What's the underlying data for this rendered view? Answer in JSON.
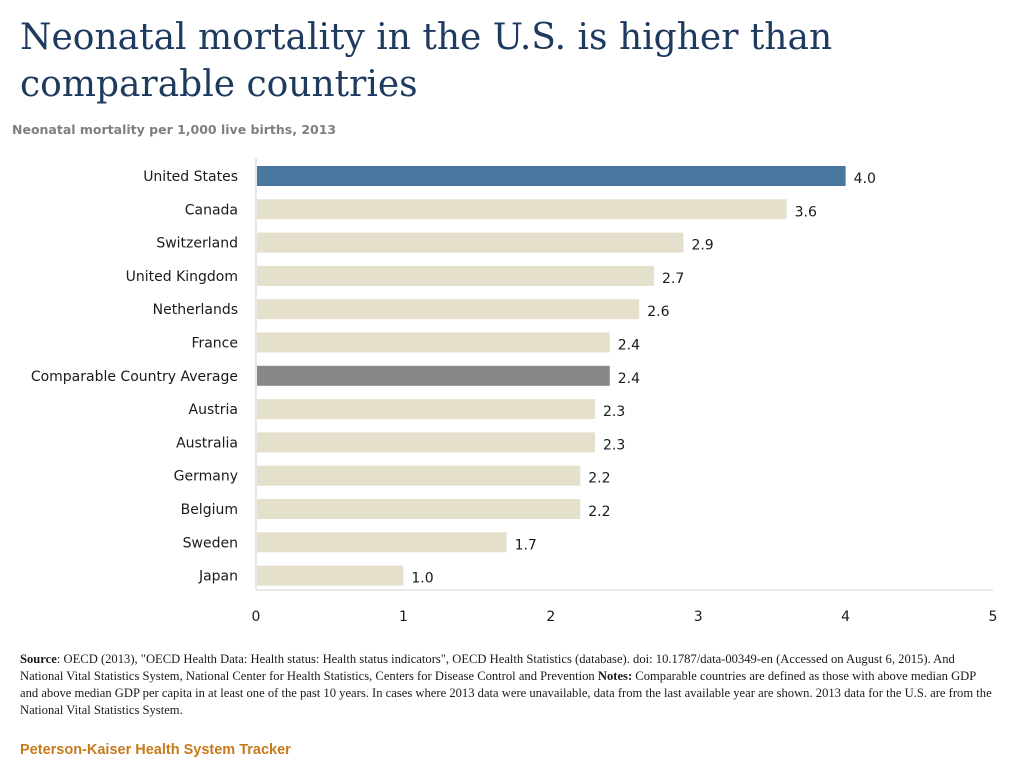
{
  "title": "Neonatal mortality in the U.S. is higher than comparable countries",
  "subtitle": "Neonatal mortality per 1,000 live births, 2013",
  "chart_data": {
    "type": "bar",
    "orientation": "horizontal",
    "categories": [
      "United States",
      "Canada",
      "Switzerland",
      "United Kingdom",
      "Netherlands",
      "France",
      "Comparable Country Average",
      "Austria",
      "Australia",
      "Germany",
      "Belgium",
      "Sweden",
      "Japan"
    ],
    "values": [
      4.0,
      3.6,
      2.9,
      2.7,
      2.6,
      2.4,
      2.4,
      2.3,
      2.3,
      2.2,
      2.2,
      1.7,
      1.0
    ],
    "value_labels": [
      "4.0",
      "3.6",
      "2.9",
      "2.7",
      "2.6",
      "2.4",
      "2.4",
      "2.3",
      "2.3",
      "2.2",
      "2.2",
      "1.7",
      "1.0"
    ],
    "xlim": [
      0,
      5
    ],
    "xticks": [
      0,
      1,
      2,
      3,
      4,
      5
    ],
    "xlabel": "",
    "ylabel": "",
    "legend": "none",
    "colors": {
      "highlight": "#4a77a0",
      "average": "#878787",
      "default": "#e5e0cc",
      "axis": "#d0d0d0"
    }
  },
  "notes": {
    "source_label": "Source",
    "source_text": ": OECD (2013), \"OECD Health Data: Health status: Health status indicators\", OECD Health Statistics (database). doi: 10.1787/data-00349-en (Accessed on August 6, 2015). And National Vital Statistics System, National Center for Health Statistics, Centers for Disease Control and Prevention ",
    "notes_label": "Notes:",
    "notes_text": " Comparable countries are defined as those with above median GDP and above median GDP per capita in at least one of the past 10 years. In cases where 2013 data were unavailable, data from the last available year are shown. 2013 data for the U.S. are from the National Vital Statistics System."
  },
  "brand": "Peterson-Kaiser Health System Tracker"
}
